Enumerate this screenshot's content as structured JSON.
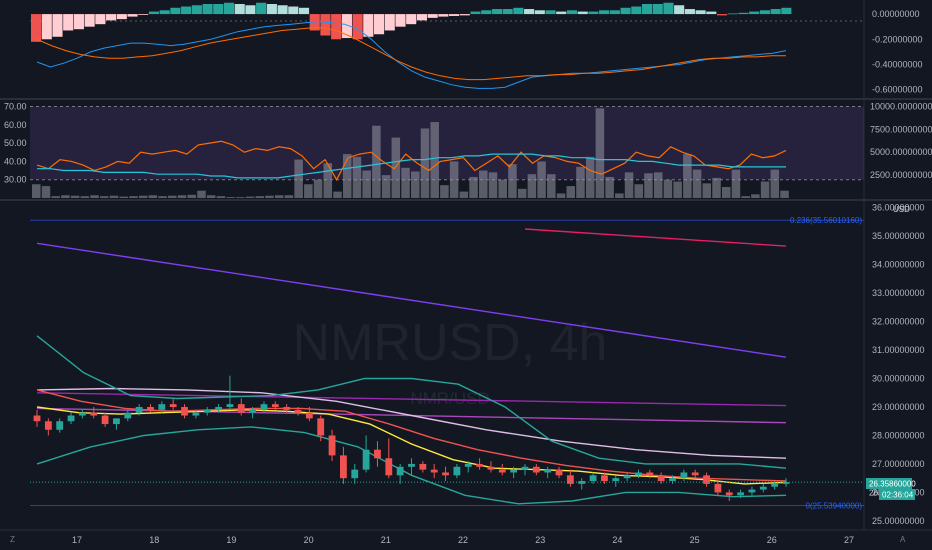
{
  "chart_data": [
    {
      "type": "macd",
      "ylim": [
        -0.65,
        0.08
      ],
      "y_ticks": [
        "0.00000000",
        "-0.20000000",
        "-0.40000000",
        "-0.60000000"
      ],
      "y_tick_values": [
        0.0,
        -0.2,
        -0.4,
        -0.6
      ],
      "histogram": [
        -0.22,
        -0.2,
        -0.18,
        -0.13,
        -0.12,
        -0.1,
        -0.08,
        -0.05,
        -0.04,
        -0.02,
        -0.005,
        0.02,
        0.03,
        0.05,
        0.06,
        0.07,
        0.08,
        0.08,
        0.09,
        0.08,
        0.07,
        0.09,
        0.08,
        0.07,
        0.06,
        0.05,
        -0.13,
        -0.17,
        -0.2,
        -0.19,
        -0.2,
        -0.18,
        -0.16,
        -0.13,
        -0.1,
        -0.08,
        -0.05,
        -0.03,
        -0.02,
        -0.015,
        -0.01,
        0.02,
        0.03,
        0.04,
        0.04,
        0.05,
        0.04,
        0.03,
        0.03,
        0.02,
        0.03,
        0.02,
        0.02,
        0.03,
        0.03,
        0.05,
        0.06,
        0.08,
        0.08,
        0.09,
        0.07,
        0.04,
        0.03,
        0.02,
        -0.01,
        0.005,
        0.01,
        0.02,
        0.03,
        0.04,
        0.05
      ],
      "series": [
        {
          "name": "",
          "color": "#2196f3",
          "values": [
            -0.38,
            -0.42,
            -0.39,
            -0.35,
            -0.3,
            -0.27,
            -0.25,
            -0.23,
            -0.23,
            -0.24,
            -0.25,
            -0.24,
            -0.22,
            -0.2,
            -0.17,
            -0.14,
            -0.12,
            -0.1,
            -0.09,
            -0.08,
            -0.07,
            -0.06,
            -0.07,
            -0.08,
            -0.12,
            -0.2,
            -0.3,
            -0.38,
            -0.45,
            -0.5,
            -0.53,
            -0.56,
            -0.58,
            -0.59,
            -0.59,
            -0.58,
            -0.54,
            -0.5,
            -0.49,
            -0.48,
            -0.47,
            -0.47,
            -0.46,
            -0.45,
            -0.44,
            -0.43,
            -0.42,
            -0.41,
            -0.4,
            -0.38,
            -0.36,
            -0.35,
            -0.34,
            -0.33,
            -0.32,
            -0.31,
            -0.29
          ]
        },
        {
          "name": "",
          "color": "#ff6d00",
          "values": [
            -0.2,
            -0.25,
            -0.29,
            -0.32,
            -0.34,
            -0.35,
            -0.35,
            -0.34,
            -0.33,
            -0.31,
            -0.29,
            -0.26,
            -0.23,
            -0.21,
            -0.19,
            -0.17,
            -0.15,
            -0.13,
            -0.12,
            -0.11,
            -0.11,
            -0.14,
            -0.19,
            -0.25,
            -0.31,
            -0.37,
            -0.42,
            -0.46,
            -0.49,
            -0.51,
            -0.52,
            -0.52,
            -0.51,
            -0.5,
            -0.49,
            -0.49,
            -0.48,
            -0.48,
            -0.47,
            -0.47,
            -0.46,
            -0.45,
            -0.44,
            -0.42,
            -0.4,
            -0.38,
            -0.36,
            -0.35,
            -0.35,
            -0.34,
            -0.34,
            -0.33,
            -0.33
          ]
        }
      ]
    },
    {
      "type": "line+bar",
      "left_ylim": [
        20,
        73
      ],
      "left_ticks": [
        "70.00",
        "60.00",
        "50.00",
        "40.00",
        "30.00"
      ],
      "left_tick_values": [
        70,
        60,
        50,
        40,
        30
      ],
      "right_ylim": [
        0,
        10600
      ],
      "right_ticks": [
        "10000.00000000",
        "7500.00000000",
        "5000.00000000",
        "2500.00000000"
      ],
      "right_tick_values": [
        10000,
        7500,
        5000,
        2500
      ],
      "band": [
        30,
        70
      ],
      "volume": [
        1500,
        1300,
        200,
        300,
        250,
        200,
        300,
        200,
        250,
        150,
        200,
        250,
        300,
        200,
        250,
        300,
        350,
        800,
        300,
        200,
        100,
        100,
        150,
        200,
        250,
        300,
        300,
        4200,
        1500,
        2000,
        3800,
        700,
        4800,
        4500,
        3000,
        7900,
        2500,
        6600,
        3300,
        2900,
        7600,
        8300,
        1400,
        4000,
        700,
        2300,
        3000,
        2800,
        2000,
        3700,
        1000,
        2600,
        4000,
        2600,
        500,
        1300,
        3400,
        4500,
        9800,
        2300,
        500,
        2800,
        1500,
        2700,
        2800,
        2000,
        1800,
        4800,
        3100,
        1600,
        2200,
        1200,
        3100,
        200,
        400,
        1800,
        3100,
        800
      ],
      "series": [
        {
          "name": "",
          "color": "#ff6d00",
          "values": [
            38,
            36,
            41,
            40,
            38,
            35,
            37,
            40,
            39,
            45,
            44,
            45,
            46,
            44,
            49,
            50,
            51,
            49,
            45,
            47,
            46,
            48,
            47,
            43,
            36,
            41,
            30,
            42,
            44,
            45,
            40,
            36,
            44,
            39,
            35,
            40,
            41,
            42,
            35,
            39,
            43,
            37,
            45,
            39,
            43,
            42,
            40,
            39,
            35,
            33,
            36,
            39,
            45,
            43,
            42,
            48,
            45,
            43,
            38,
            37,
            36,
            38,
            44,
            42,
            43,
            46
          ]
        },
        {
          "name": "",
          "color": "#26c6da",
          "values": [
            36,
            36,
            35,
            35,
            35,
            34,
            34,
            34,
            34,
            33,
            33,
            33,
            33,
            32,
            32,
            31,
            31,
            31,
            31,
            32,
            33,
            34,
            35,
            36,
            37,
            38,
            39,
            40,
            41,
            41,
            42,
            42,
            43,
            43,
            44,
            44,
            44,
            44,
            43,
            43,
            42,
            42,
            41,
            41,
            41,
            40,
            40,
            39,
            38,
            38,
            38,
            38,
            37,
            37,
            37,
            37,
            37
          ]
        }
      ]
    },
    {
      "type": "candlestick",
      "ylim": [
        24.75,
        36.2
      ],
      "y_ticks": [
        "36.00000000",
        "35.00000000",
        "34.00000000",
        "33.00000000",
        "32.00000000",
        "31.00000000",
        "30.00000000",
        "29.00000000",
        "28.00000000",
        "27.00000000",
        "26.00000000",
        "25.00000000"
      ],
      "y_tick_values": [
        36,
        35,
        34,
        33,
        32,
        31,
        30,
        29,
        28,
        27,
        26,
        25
      ],
      "x_ticks": [
        "17",
        "18",
        "19",
        "20",
        "21",
        "22",
        "23",
        "24",
        "25",
        "26",
        "27"
      ],
      "currency_label": "USD",
      "last_price": "26.35860000",
      "countdown": "02:36:04",
      "current_label": "26.",
      "fib_levels": [
        {
          "label": "0.236(35.56010160)",
          "value": 35.5601016
        },
        {
          "label": "0(25.53940000)",
          "value": 25.5394
        }
      ],
      "candles": [
        [
          28.7,
          28.9,
          28.3,
          28.5
        ],
        [
          28.5,
          28.6,
          28.0,
          28.2
        ],
        [
          28.2,
          28.6,
          28.1,
          28.5
        ],
        [
          28.5,
          28.8,
          28.4,
          28.7
        ],
        [
          28.7,
          28.9,
          28.6,
          28.8
        ],
        [
          28.8,
          29.0,
          28.6,
          28.7
        ],
        [
          28.7,
          28.8,
          28.3,
          28.4
        ],
        [
          28.4,
          28.6,
          28.2,
          28.6
        ],
        [
          28.6,
          28.9,
          28.5,
          28.8
        ],
        [
          28.8,
          29.1,
          28.7,
          29.0
        ],
        [
          29.0,
          29.1,
          28.8,
          28.9
        ],
        [
          28.9,
          29.2,
          28.8,
          29.1
        ],
        [
          29.1,
          29.3,
          28.9,
          29.0
        ],
        [
          29.0,
          29.1,
          28.6,
          28.7
        ],
        [
          28.7,
          28.9,
          28.6,
          28.8
        ],
        [
          28.8,
          29.0,
          28.7,
          28.9
        ],
        [
          28.9,
          29.1,
          28.8,
          29.0
        ],
        [
          29.0,
          30.1,
          28.9,
          29.1
        ],
        [
          29.1,
          29.3,
          28.7,
          28.8
        ],
        [
          28.8,
          29.0,
          28.6,
          28.9
        ],
        [
          28.9,
          29.2,
          28.8,
          29.1
        ],
        [
          29.1,
          29.2,
          28.9,
          29.0
        ],
        [
          29.0,
          29.1,
          28.8,
          28.9
        ],
        [
          28.9,
          29.0,
          28.7,
          28.8
        ],
        [
          28.8,
          29.0,
          28.5,
          28.6
        ],
        [
          28.6,
          28.7,
          27.8,
          28.0
        ],
        [
          28.0,
          28.2,
          27.1,
          27.3
        ],
        [
          27.3,
          27.6,
          26.3,
          26.5
        ],
        [
          26.5,
          27.0,
          26.3,
          26.8
        ],
        [
          26.8,
          28.0,
          26.7,
          27.5
        ],
        [
          27.5,
          27.8,
          26.9,
          27.2
        ],
        [
          27.2,
          27.9,
          26.5,
          26.6
        ],
        [
          26.6,
          27.0,
          26.3,
          26.9
        ],
        [
          26.9,
          27.2,
          26.6,
          27.0
        ],
        [
          27.0,
          27.1,
          26.7,
          26.8
        ],
        [
          26.8,
          27.0,
          26.5,
          26.7
        ],
        [
          26.7,
          26.9,
          26.4,
          26.6
        ],
        [
          26.6,
          27.0,
          26.5,
          26.9
        ],
        [
          26.9,
          27.1,
          26.7,
          27.0
        ],
        [
          27.0,
          27.2,
          26.8,
          26.9
        ],
        [
          26.9,
          27.1,
          26.7,
          26.8
        ],
        [
          26.8,
          27.0,
          26.6,
          26.7
        ],
        [
          26.7,
          26.9,
          26.5,
          26.8
        ],
        [
          26.8,
          27.0,
          26.6,
          26.9
        ],
        [
          26.9,
          27.0,
          26.6,
          26.7
        ],
        [
          26.7,
          26.9,
          26.5,
          26.8
        ],
        [
          26.8,
          26.9,
          26.5,
          26.6
        ],
        [
          26.6,
          26.8,
          26.2,
          26.3
        ],
        [
          26.3,
          26.5,
          26.1,
          26.4
        ],
        [
          26.4,
          26.7,
          26.3,
          26.6
        ],
        [
          26.6,
          26.7,
          26.3,
          26.4
        ],
        [
          26.4,
          26.6,
          26.2,
          26.5
        ],
        [
          26.5,
          26.7,
          26.4,
          26.6
        ],
        [
          26.6,
          26.8,
          26.5,
          26.7
        ],
        [
          26.7,
          26.8,
          26.5,
          26.6
        ],
        [
          26.6,
          26.7,
          26.3,
          26.4
        ],
        [
          26.4,
          26.6,
          26.3,
          26.5
        ],
        [
          26.5,
          26.8,
          26.4,
          26.7
        ],
        [
          26.7,
          26.8,
          26.5,
          26.6
        ],
        [
          26.6,
          26.7,
          26.2,
          26.3
        ],
        [
          26.3,
          26.4,
          25.9,
          26.0
        ],
        [
          26.0,
          26.1,
          25.7,
          25.9
        ],
        [
          25.9,
          26.1,
          25.8,
          26.0
        ],
        [
          26.0,
          26.2,
          25.9,
          26.1
        ],
        [
          26.1,
          26.3,
          26.0,
          26.2
        ],
        [
          26.2,
          26.4,
          26.1,
          26.3
        ],
        [
          26.3,
          26.5,
          26.2,
          26.36
        ]
      ],
      "overlay_lines": [
        {
          "color": "#e91e63",
          "x_start": 43,
          "points": [
            35.25,
            34.65
          ]
        },
        {
          "color": "#7e3ff2",
          "x_start": 0,
          "points": [
            34.75,
            30.75
          ]
        },
        {
          "color": "#9c27b0",
          "x_start": 0,
          "points": [
            29.5,
            29.05
          ]
        },
        {
          "color": "#ab47bc",
          "x_start": 0,
          "points": [
            28.95,
            28.45
          ]
        },
        {
          "color": "#e1bee7",
          "x_start": 0,
          "points": [
            29.6,
            29.65,
            29.6,
            29.5,
            29.2,
            28.7,
            28.2,
            27.8,
            27.5,
            27.3,
            27.2
          ]
        },
        {
          "color": "#ffeb3b",
          "x_start": 0,
          "points": [
            29.0,
            28.8,
            28.75,
            28.8,
            28.85,
            28.9,
            28.85,
            28.75,
            28.4,
            27.7,
            27.15,
            26.85,
            26.8,
            26.75,
            26.6,
            26.55,
            26.45,
            26.3,
            26.35
          ]
        },
        {
          "color": "#ef5350",
          "x_start": 0,
          "points": [
            29.6,
            29.2,
            28.95,
            28.85,
            28.9,
            28.95,
            28.95,
            28.85,
            28.4,
            27.9,
            27.5,
            27.2,
            26.95,
            26.75,
            26.6,
            26.5,
            26.45,
            26.4
          ]
        },
        {
          "color": "#26a69a",
          "x_start": 0,
          "points": [
            31.5,
            30.2,
            29.4,
            29.3,
            29.35,
            29.4,
            29.6,
            30.0,
            30.0,
            29.8,
            29.0,
            27.8,
            27.2,
            27.0,
            27.0,
            27.0,
            26.85
          ]
        },
        {
          "color": "#26a69a",
          "x_start": 0,
          "points": [
            27.0,
            27.6,
            28.0,
            28.2,
            28.3,
            28.1,
            27.6,
            26.6,
            25.9,
            25.6,
            25.7,
            26.0,
            26.0,
            25.85,
            25.9
          ]
        }
      ]
    }
  ],
  "watermark": {
    "symbol": "NMRUSD, 4h",
    "pair": "NMR/USD"
  },
  "footer_left": "Z",
  "footer_right": "A",
  "colors": {
    "bg": "#131722",
    "up": "#26a69a",
    "down": "#ef5350"
  }
}
